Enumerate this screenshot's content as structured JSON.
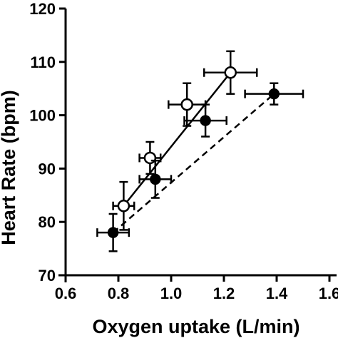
{
  "chart_data": {
    "type": "scatter",
    "title": "",
    "xlabel": "Oxygen uptake (L/min)",
    "ylabel": "Heart Rate (bpm)",
    "xlim": [
      0.6,
      1.6
    ],
    "ylim": [
      70,
      120
    ],
    "xticks": [
      0.6,
      0.8,
      1.0,
      1.2,
      1.4,
      1.6
    ],
    "yticks": [
      70,
      80,
      90,
      100,
      110,
      120
    ],
    "xtick_labels": [
      "0.6",
      "0.8",
      "1.0",
      "1.2",
      "1.4",
      "1.6"
    ],
    "ytick_labels": [
      "70",
      "80",
      "90",
      "100",
      "110",
      "120"
    ],
    "grid": false,
    "legend": "none",
    "series": [
      {
        "marker": "open-circle",
        "line": "solid",
        "color": "#000000",
        "points": [
          {
            "x": 0.82,
            "y": 83,
            "xerr": 0.04,
            "yerr": 4.5
          },
          {
            "x": 0.92,
            "y": 92,
            "xerr": 0.04,
            "yerr": 3.0
          },
          {
            "x": 1.06,
            "y": 102,
            "xerr": 0.07,
            "yerr": 4.0
          },
          {
            "x": 1.225,
            "y": 108,
            "xerr": 0.1,
            "yerr": 4.0
          }
        ]
      },
      {
        "marker": "filled-circle",
        "line": "dashed",
        "color": "#000000",
        "points": [
          {
            "x": 0.78,
            "y": 78,
            "xerr": 0.06,
            "yerr": 3.5
          },
          {
            "x": 0.94,
            "y": 88,
            "xerr": 0.06,
            "yerr": 3.5
          },
          {
            "x": 1.13,
            "y": 99,
            "xerr": 0.08,
            "yerr": 3.0
          },
          {
            "x": 1.39,
            "y": 104,
            "xerr": 0.11,
            "yerr": 2.0
          }
        ]
      }
    ]
  }
}
